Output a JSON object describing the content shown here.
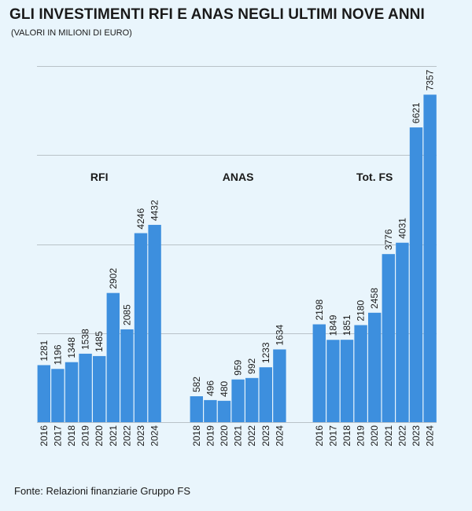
{
  "header": {
    "title": "GLI INVESTIMENTI RFI E ANAS NEGLI ULTIMI NOVE ANNI",
    "subtitle": "(VALORI IN MILIONI DI EURO)"
  },
  "footer": {
    "source": "Fonte: Relazioni finanziarie Gruppo FS"
  },
  "colors": {
    "bar": "#3d8fde",
    "gridline": "#b9c2c8",
    "background": "#e9f5fc"
  },
  "chart_data": {
    "type": "bar",
    "title": "GLI INVESTIMENTI RFI E ANAS NEGLI ULTIMI NOVE ANNI",
    "ylabel": "(VALORI IN MILIONI DI EURO)",
    "ylim": [
      0,
      8000
    ],
    "grid": true,
    "groups": [
      {
        "name": "RFI",
        "categories": [
          "2016",
          "2017",
          "2018",
          "2019",
          "2020",
          "2021",
          "2022",
          "2023",
          "2024"
        ],
        "values": [
          1281,
          1196,
          1348,
          1538,
          1485,
          2902,
          2085,
          4246,
          4432
        ]
      },
      {
        "name": "ANAS",
        "categories": [
          "2018",
          "2019",
          "2020",
          "2021",
          "2022",
          "2023",
          "2024"
        ],
        "values": [
          582,
          496,
          480,
          959,
          992,
          1233,
          1634
        ]
      },
      {
        "name": "Tot. FS",
        "categories": [
          "2016",
          "2017",
          "2018",
          "2019",
          "2020",
          "2021",
          "2022",
          "2023",
          "2024"
        ],
        "values": [
          2198,
          1849,
          1851,
          2180,
          2458,
          3776,
          4031,
          6621,
          7357
        ]
      }
    ]
  }
}
